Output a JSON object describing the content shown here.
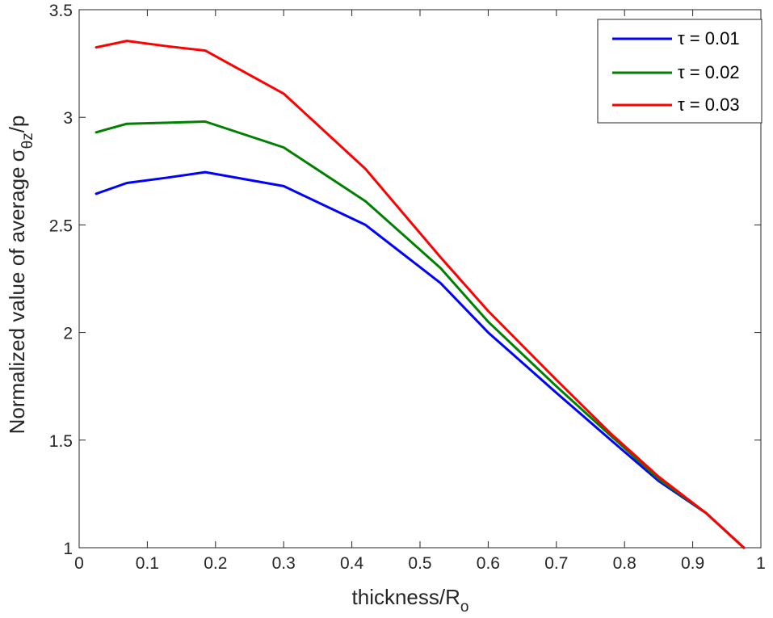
{
  "chart_data": {
    "type": "line",
    "xlabel": "thickness/R",
    "xlabel_sub": "o",
    "ylabel": "Normalized value of average",
    "ylabel_symbol": "σ",
    "ylabel_sub": "θz",
    "ylabel_tail": "/p",
    "xlim": [
      0,
      1
    ],
    "ylim": [
      1,
      3.5
    ],
    "xticks": [
      0,
      0.1,
      0.2,
      0.3,
      0.4,
      0.5,
      0.6,
      0.7,
      0.8,
      0.9,
      1
    ],
    "xtick_labels": [
      "0",
      "0.1",
      "0.2",
      "0.3",
      "0.4",
      "0.5",
      "0.6",
      "0.7",
      "0.8",
      "0.9",
      "1"
    ],
    "yticks": [
      1,
      1.5,
      2,
      2.5,
      3,
      3.5
    ],
    "ytick_labels": [
      "1",
      "1.5",
      "2",
      "2.5",
      "3",
      "3.5"
    ],
    "grid": false,
    "legend_position": "top-right",
    "series": [
      {
        "name": "τ = 0.01",
        "color": "#0000ff",
        "x": [
          0.025,
          0.07,
          0.13,
          0.185,
          0.3,
          0.42,
          0.53,
          0.6,
          0.7,
          0.78,
          0.85,
          0.92,
          0.975
        ],
        "y": [
          2.645,
          2.695,
          2.72,
          2.745,
          2.68,
          2.5,
          2.23,
          2.0,
          1.72,
          1.5,
          1.31,
          1.16,
          1.0
        ]
      },
      {
        "name": "τ = 0.02",
        "color": "#008000",
        "x": [
          0.025,
          0.07,
          0.13,
          0.185,
          0.3,
          0.42,
          0.53,
          0.6,
          0.7,
          0.78,
          0.85,
          0.92,
          0.975
        ],
        "y": [
          2.93,
          2.97,
          2.975,
          2.98,
          2.86,
          2.61,
          2.3,
          2.05,
          1.75,
          1.52,
          1.32,
          1.16,
          1.0
        ]
      },
      {
        "name": "τ = 0.03",
        "color": "#ff0000",
        "x": [
          0.025,
          0.07,
          0.13,
          0.185,
          0.3,
          0.42,
          0.53,
          0.6,
          0.7,
          0.78,
          0.85,
          0.92,
          0.975
        ],
        "y": [
          3.325,
          3.355,
          3.33,
          3.31,
          3.11,
          2.76,
          2.35,
          2.1,
          1.78,
          1.53,
          1.33,
          1.16,
          1.0
        ]
      }
    ]
  }
}
